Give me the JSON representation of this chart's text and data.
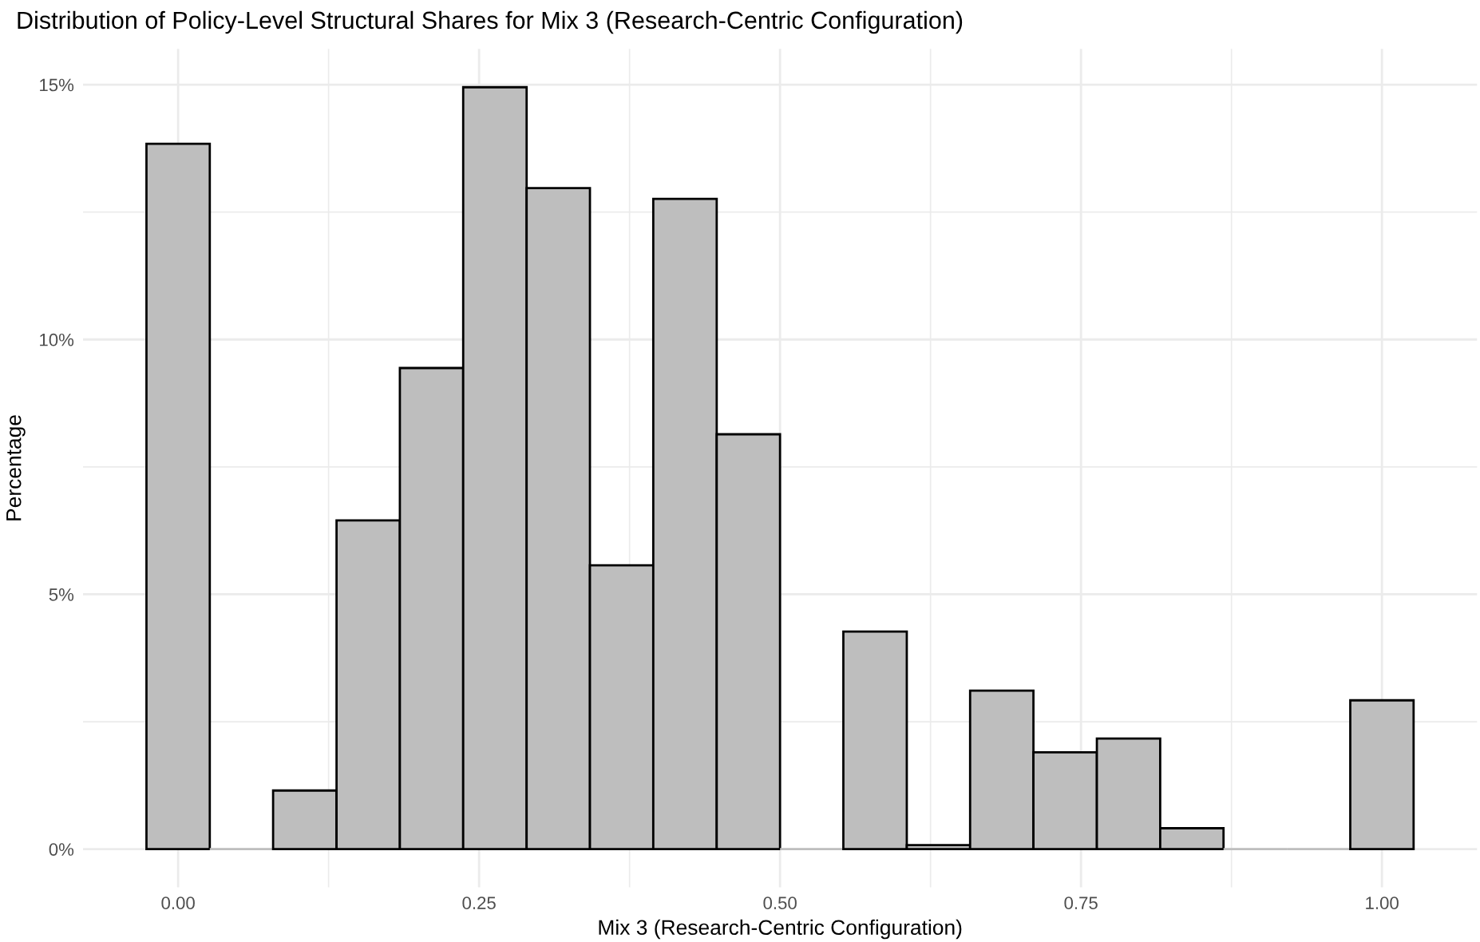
{
  "chart_data": {
    "type": "histogram",
    "title": "Distribution of Policy-Level Structural Shares for Mix 3 (Research-Centric Configuration)",
    "xlabel": "Mix 3 (Research-Centric Configuration)",
    "ylabel": "Percentage",
    "bins": [
      -0.0263,
      0.0263,
      0.0789,
      0.1316,
      0.1842,
      0.2368,
      0.2895,
      0.3421,
      0.3947,
      0.4474,
      0.5,
      0.5526,
      0.6053,
      0.6579,
      0.7105,
      0.7632,
      0.8158,
      0.8684,
      0.9211,
      0.9737,
      1.0263
    ],
    "values": [
      13.84,
      0,
      1.15,
      6.45,
      9.44,
      14.95,
      12.97,
      5.57,
      12.76,
      8.14,
      0,
      4.27,
      0.08,
      3.11,
      1.9,
      2.17,
      0.41,
      0,
      0,
      2.92
    ],
    "color": "#bebebe",
    "xlim": [
      -0.079,
      1.079
    ],
    "ylim": [
      -0.75,
      15.7
    ],
    "xticks": [
      {
        "value": 0,
        "label": "0.00"
      },
      {
        "value": 0.125,
        "label": null
      },
      {
        "value": 0.25,
        "label": "0.25"
      },
      {
        "value": 0.375,
        "label": null
      },
      {
        "value": 0.5,
        "label": "0.50"
      },
      {
        "value": 0.625,
        "label": null
      },
      {
        "value": 0.75,
        "label": "0.75"
      },
      {
        "value": 0.875,
        "label": null
      },
      {
        "value": 1,
        "label": "1.00"
      }
    ],
    "yticks": [
      {
        "value": 0,
        "label": "0%"
      },
      {
        "value": 2.5,
        "label": null
      },
      {
        "value": 5,
        "label": "5%"
      },
      {
        "value": 7.5,
        "label": null
      },
      {
        "value": 10,
        "label": "10%"
      },
      {
        "value": 12.5,
        "label": null
      },
      {
        "value": 15,
        "label": "15%"
      }
    ],
    "grid": true
  }
}
